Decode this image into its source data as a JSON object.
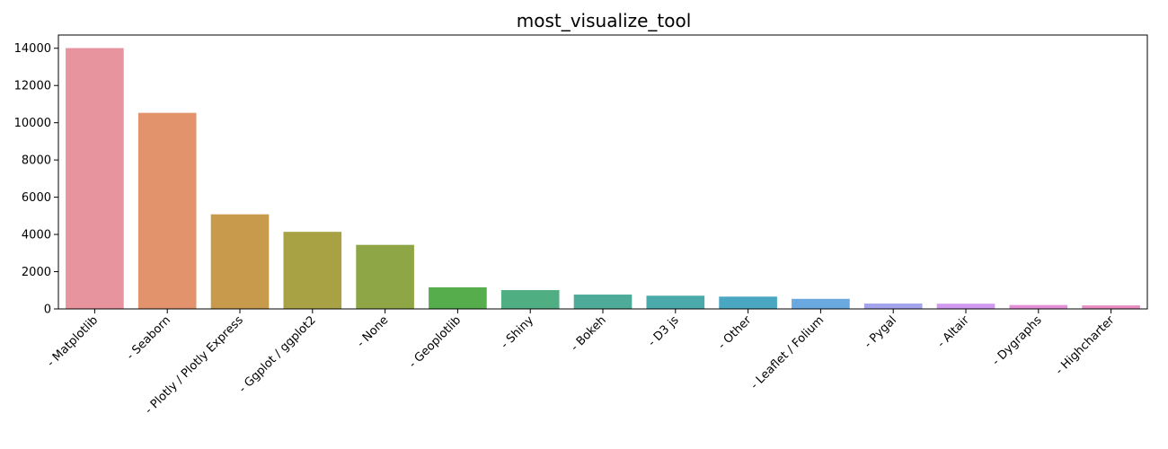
{
  "chart_data": {
    "type": "bar",
    "title": "most_visualize_tool",
    "xlabel": "",
    "ylabel": "",
    "categories": [
      " -  Matplotlib",
      " -  Seaborn",
      " -  Plotly / Plotly Express",
      " -  Ggplot / ggplot2",
      " - None",
      " -  Geoplotlib",
      " -  Shiny",
      " -  Bokeh",
      " -  D3 js",
      " - Other",
      " -  Leaflet / Folium",
      " -  Pygal",
      " -  Altair",
      " -  Dygraphs",
      " -  Highcharter"
    ],
    "values": [
      14010,
      10530,
      5080,
      4140,
      3440,
      1160,
      1010,
      770,
      710,
      660,
      540,
      290,
      280,
      210,
      190
    ],
    "colors": [
      "#e8949f",
      "#e3936b",
      "#c89a4b",
      "#a8a245",
      "#8ea645",
      "#55ae4b",
      "#4fae82",
      "#4eab9a",
      "#4aa9ab",
      "#4aa7c1",
      "#69a9e0",
      "#a3a3ee",
      "#d19af0",
      "#e58fd9",
      "#e88fc2"
    ],
    "ylim": [
      0,
      14711
    ],
    "yticks": [
      0,
      2000,
      4000,
      6000,
      8000,
      10000,
      12000,
      14000
    ],
    "ytick_labels": [
      "0",
      "2000",
      "4000",
      "6000",
      "8000",
      "10000",
      "12000",
      "14000"
    ],
    "grid": false,
    "legend": "none"
  }
}
